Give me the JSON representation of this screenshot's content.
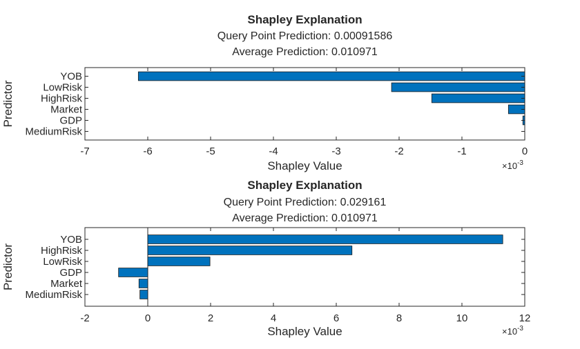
{
  "figure": {
    "bar_color": "#0072BD",
    "axis_color": "#262626",
    "background": "#ffffff"
  },
  "chart_data": [
    {
      "type": "bar",
      "orientation": "horizontal",
      "title": "Shapley Explanation",
      "subtitle_lines": [
        "Query Point Prediction: 0.00091586",
        "Average Prediction: 0.010971"
      ],
      "xlabel": "Shapley Value",
      "ylabel": "Predictor",
      "x_exponent_label": "×10",
      "x_exponent_power": "-3",
      "xlim": [
        -7,
        0
      ],
      "xticks": [
        -7,
        -6,
        -5,
        -4,
        -3,
        -2,
        -1,
        0
      ],
      "xtick_labels": [
        "-7",
        "-6",
        "-5",
        "-4",
        "-3",
        "-2",
        "-1",
        "0"
      ],
      "categories": [
        "YOB",
        "LowRisk",
        "HighRisk",
        "Market",
        "GDP",
        "MediumRisk"
      ],
      "values": [
        -6.15,
        -2.12,
        -1.48,
        -0.26,
        -0.03,
        0.0
      ],
      "value_units": "×10^-3",
      "grid": false
    },
    {
      "type": "bar",
      "orientation": "horizontal",
      "title": "Shapley Explanation",
      "subtitle_lines": [
        "Query Point Prediction: 0.029161",
        "Average Prediction: 0.010971"
      ],
      "xlabel": "Shapley Value",
      "ylabel": "Predictor",
      "x_exponent_label": "×10",
      "x_exponent_power": "-3",
      "xlim": [
        -2,
        12
      ],
      "xticks": [
        -2,
        0,
        2,
        4,
        6,
        8,
        10,
        12
      ],
      "xtick_labels": [
        "-2",
        "0",
        "2",
        "4",
        "6",
        "8",
        "10",
        "12"
      ],
      "categories": [
        "YOB",
        "HighRisk",
        "LowRisk",
        "GDP",
        "Market",
        "MediumRisk"
      ],
      "values": [
        11.3,
        6.5,
        1.98,
        -0.93,
        -0.28,
        -0.25
      ],
      "value_units": "×10^-3",
      "grid": false
    }
  ]
}
